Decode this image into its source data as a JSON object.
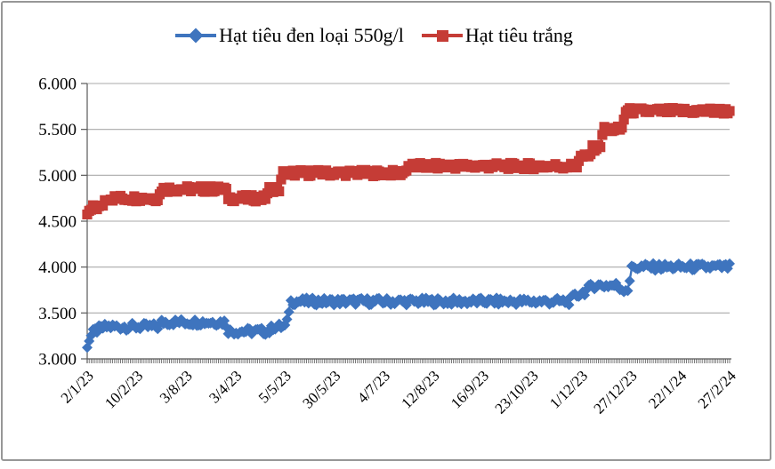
{
  "chart": {
    "frame_border_color": "#979797",
    "background_color": "#FFFFFF"
  },
  "chart_data": {
    "type": "line",
    "title": "",
    "xlabel": "",
    "ylabel": "",
    "legend_position": "top",
    "grid": true,
    "grid_color": "#A9A9A9",
    "axis_color": "#595959",
    "y_min": 3000,
    "y_max": 6000,
    "y_step": 500,
    "y_tick_labels": [
      "3.000",
      "3.500",
      "4.000",
      "4.500",
      "5.000",
      "5.500",
      "6.000"
    ],
    "x_tick_labels": [
      "2/1/23",
      "10/2/23",
      "3/8/23",
      "3/4/23",
      "5/5/23",
      "30/5/23",
      "4/7/23",
      "12/8/23",
      "16/9/23",
      "23/10/23",
      "1/12/23",
      "27/12/23",
      "22/1/24",
      "27/2/24"
    ],
    "n_points": 329,
    "series": [
      {
        "name": "Hạt tiêu đen loại 550g/l",
        "color": "#3E74BE",
        "marker": "diamond",
        "daily_jitter": 40,
        "anchors": [
          [
            0.0,
            3150
          ],
          [
            0.004,
            3225
          ],
          [
            0.008,
            3275
          ],
          [
            0.011,
            3300
          ],
          [
            0.019,
            3325
          ],
          [
            0.03,
            3350
          ],
          [
            0.111,
            3350
          ],
          [
            0.116,
            3400
          ],
          [
            0.215,
            3400
          ],
          [
            0.22,
            3300
          ],
          [
            0.284,
            3300
          ],
          [
            0.289,
            3350
          ],
          [
            0.31,
            3350
          ],
          [
            0.316,
            3625
          ],
          [
            0.751,
            3625
          ],
          [
            0.758,
            3675
          ],
          [
            0.764,
            3700
          ],
          [
            0.773,
            3725
          ],
          [
            0.778,
            3750
          ],
          [
            0.787,
            3800
          ],
          [
            0.825,
            3800
          ],
          [
            0.831,
            3760
          ],
          [
            0.842,
            3760
          ],
          [
            0.848,
            4000
          ],
          [
            1.0,
            4000
          ]
        ]
      },
      {
        "name": "Hạt tiêu trắng",
        "color": "#C53C36",
        "marker": "square",
        "daily_jitter": 35,
        "anchors": [
          [
            0.0,
            4575
          ],
          [
            0.004,
            4600
          ],
          [
            0.01,
            4650
          ],
          [
            0.022,
            4650
          ],
          [
            0.029,
            4750
          ],
          [
            0.111,
            4750
          ],
          [
            0.116,
            4850
          ],
          [
            0.215,
            4850
          ],
          [
            0.22,
            4750
          ],
          [
            0.277,
            4750
          ],
          [
            0.283,
            4850
          ],
          [
            0.299,
            4850
          ],
          [
            0.305,
            5025
          ],
          [
            0.493,
            5025
          ],
          [
            0.499,
            5100
          ],
          [
            0.762,
            5100
          ],
          [
            0.767,
            5200
          ],
          [
            0.781,
            5200
          ],
          [
            0.787,
            5300
          ],
          [
            0.798,
            5300
          ],
          [
            0.803,
            5500
          ],
          [
            0.832,
            5500
          ],
          [
            0.838,
            5700
          ],
          [
            1.0,
            5700
          ]
        ]
      }
    ]
  }
}
